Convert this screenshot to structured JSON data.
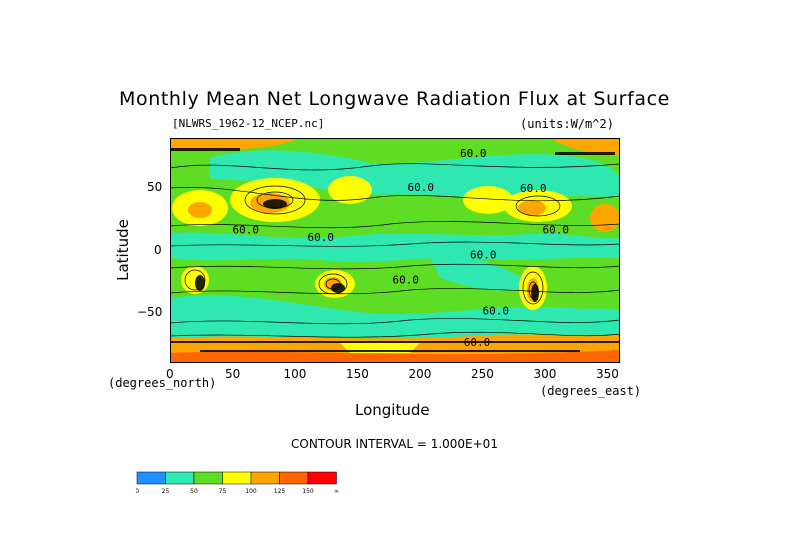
{
  "chart_data": {
    "type": "heatmap",
    "title": "Monthly Mean Net Longwave Radiation Flux at Surface",
    "subtitle_left": "[NLWRS_1962-12_NCEP.nc]",
    "subtitle_right": "(units:W/m^2)",
    "xlabel": "Longitude",
    "ylabel": "Latitude",
    "x_unit": "(degrees_east)",
    "y_unit": "(degrees_north)",
    "xlim": [
      0,
      360
    ],
    "ylim": [
      -90,
      90
    ],
    "x_ticks": [
      0,
      50,
      100,
      150,
      200,
      250,
      300,
      350
    ],
    "y_ticks": [
      50,
      0,
      -50
    ],
    "x_tick_labels": [
      "0",
      "50",
      "100",
      "150",
      "200",
      "250",
      "300",
      "350"
    ],
    "y_tick_labels": [
      "50",
      "0",
      "−50"
    ],
    "contour_interval_text": "CONTOUR INTERVAL = 1.000E+01",
    "contour_labels": [
      {
        "text": "60.0",
        "lon": 232,
        "lat": 78
      },
      {
        "text": "60.0",
        "lon": 190,
        "lat": 51
      },
      {
        "text": "60.0",
        "lon": 280,
        "lat": 50
      },
      {
        "text": "60.0",
        "lon": 50,
        "lat": 17
      },
      {
        "text": "60.0",
        "lon": 110,
        "lat": 11
      },
      {
        "text": "60.0",
        "lon": 298,
        "lat": 17
      },
      {
        "text": "60.0",
        "lon": 240,
        "lat": -3
      },
      {
        "text": "60.0",
        "lon": 178,
        "lat": -23
      },
      {
        "text": "60.0",
        "lon": 250,
        "lat": -48
      },
      {
        "text": "60.0",
        "lon": 235,
        "lat": -73
      }
    ],
    "colorbar": {
      "colors": [
        "#1e90ff",
        "#2ee8b0",
        "#5fdd24",
        "#ffff00",
        "#ffa500",
        "#ff6600",
        "#ff0000"
      ],
      "levels": [
        "0",
        "25",
        "50",
        "75",
        "100",
        "125",
        "150",
        "∞"
      ]
    }
  }
}
